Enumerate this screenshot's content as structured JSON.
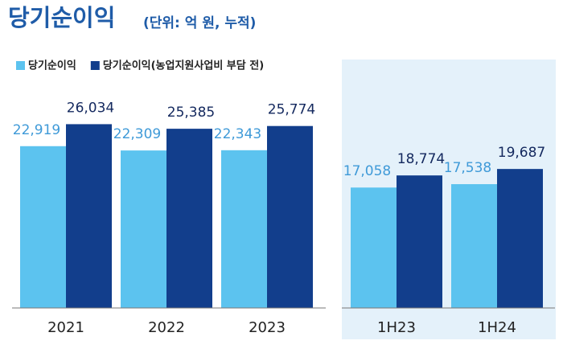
{
  "chart_data": [
    {
      "type": "bar",
      "title": "당기순이익",
      "subtitle": "(단위: 억 원, 누적)",
      "categories": [
        "2021",
        "2022",
        "2023"
      ],
      "series": [
        {
          "name": "당기순이익",
          "color": "#5cc3ef",
          "values": [
            22919,
            22309,
            22343
          ],
          "value_labels": [
            "22,919",
            "22,309",
            "22,343"
          ]
        },
        {
          "name": "당기순이익(농업지원사업비 부담 전)",
          "color": "#123e8c",
          "values": [
            26034,
            25385,
            25774
          ],
          "value_labels": [
            "26,034",
            "25,385",
            "25,774"
          ]
        }
      ]
    },
    {
      "type": "bar",
      "categories": [
        "1H23",
        "1H24"
      ],
      "series": [
        {
          "color": "#5cc3ef",
          "values": [
            17058,
            17538
          ],
          "value_labels": [
            "17,058",
            "17,538"
          ]
        },
        {
          "color": "#123e8c",
          "values": [
            18774,
            19687
          ],
          "value_labels": [
            "18,774",
            "19,687"
          ]
        }
      ]
    }
  ]
}
